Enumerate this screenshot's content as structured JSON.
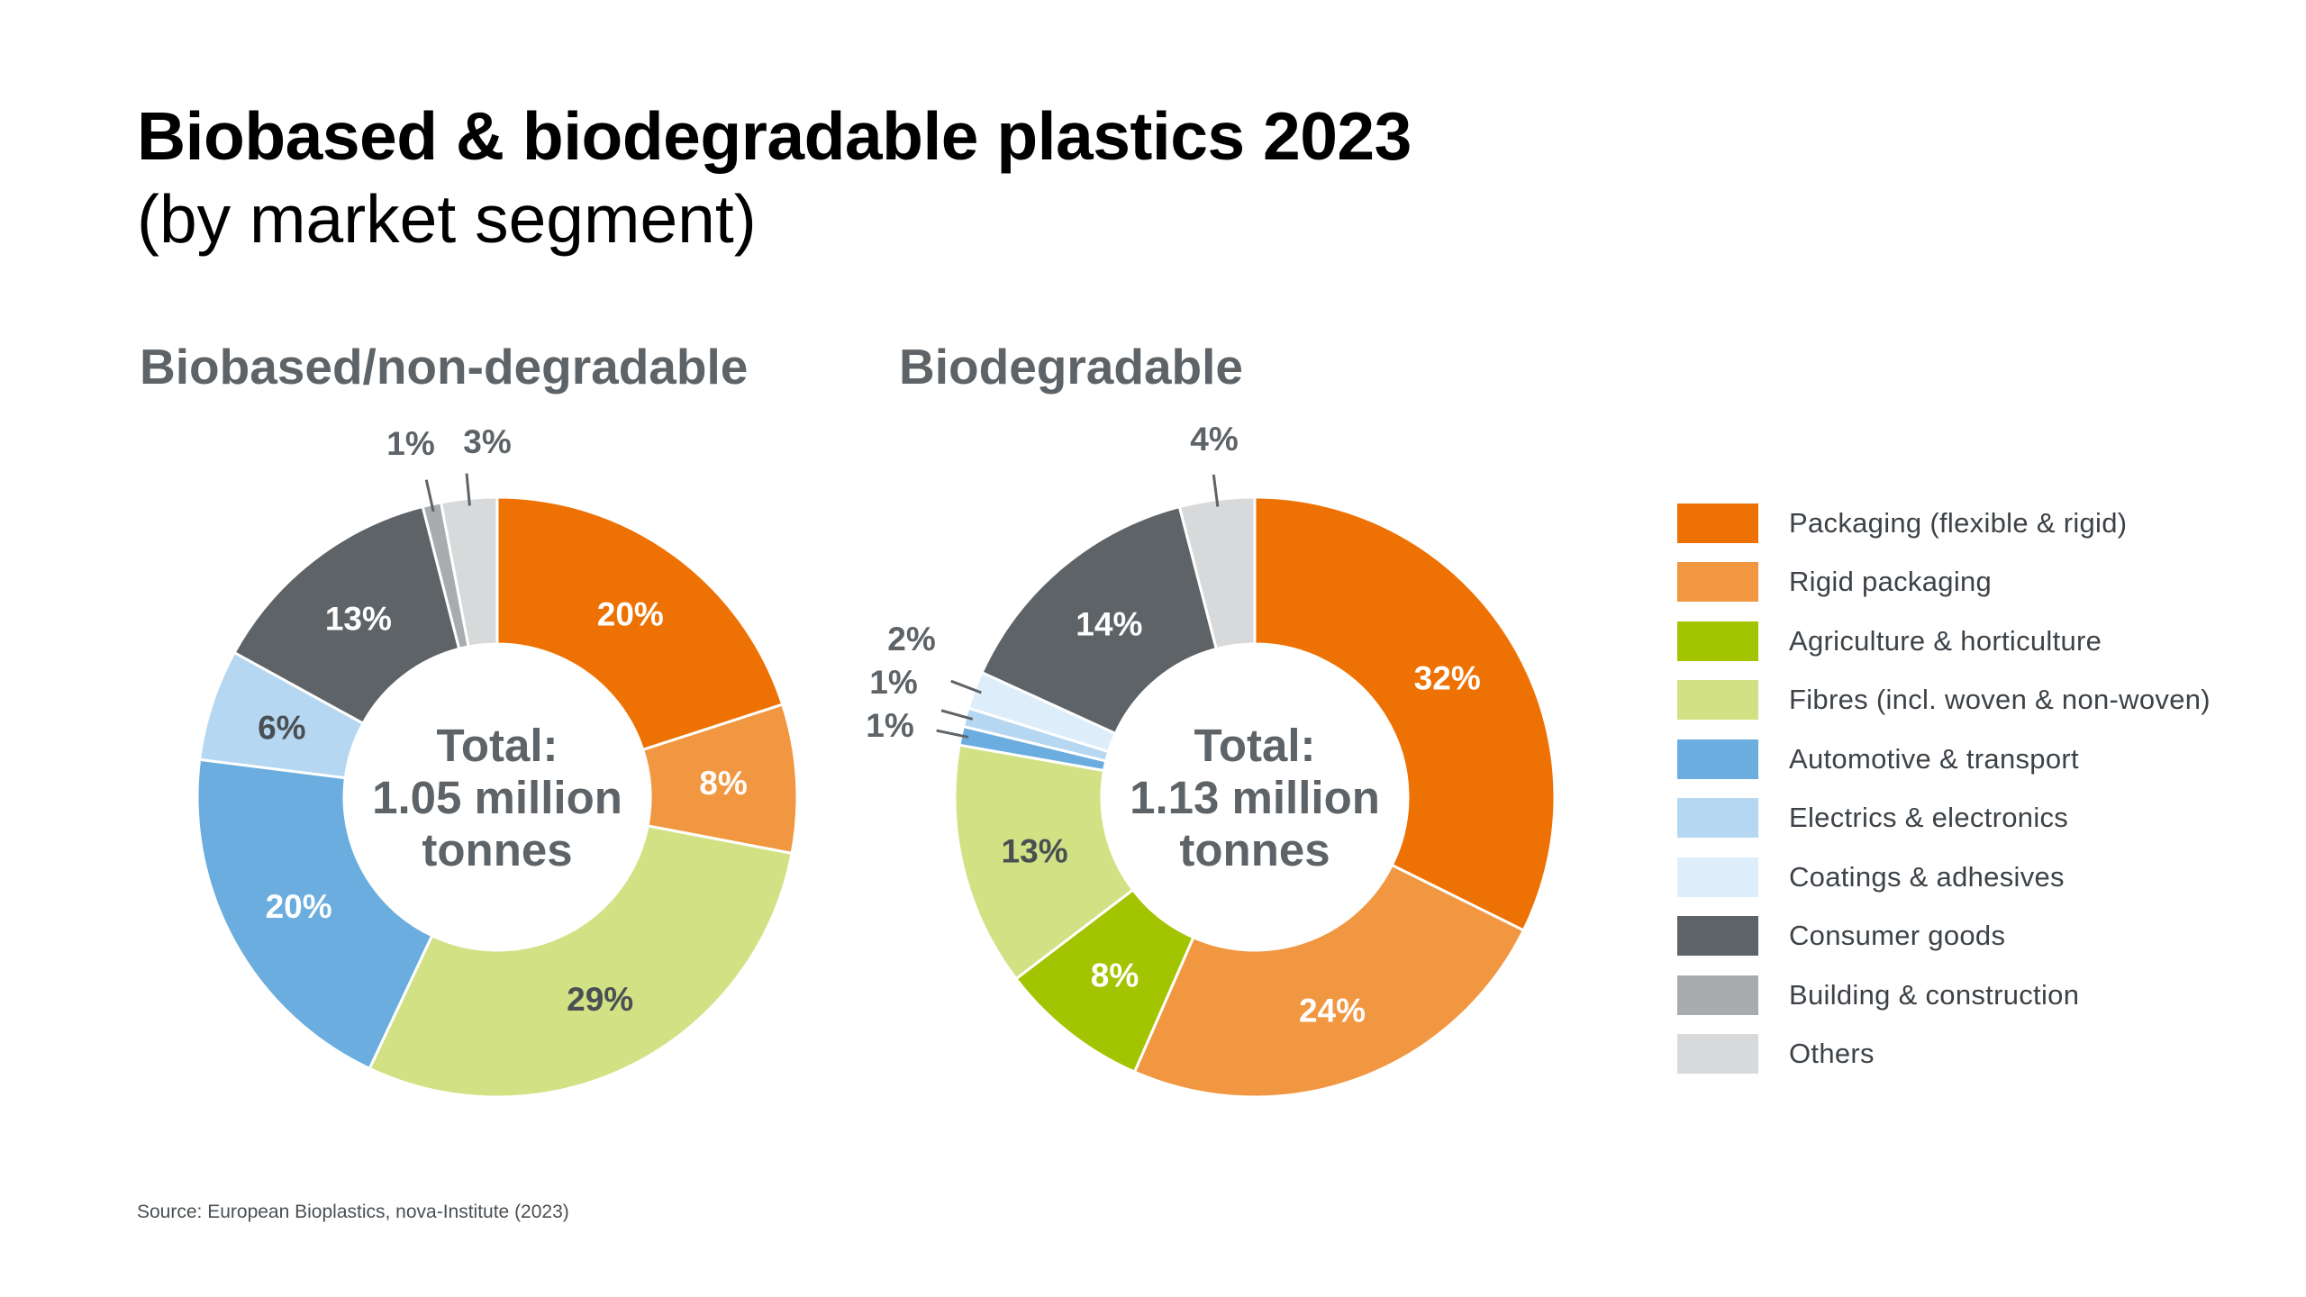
{
  "title": "Biobased & biodegradable plastics 2023",
  "subtitle": "(by market segment)",
  "source": "Source: European Bioplastics, nova-Institute (2023)",
  "legend": [
    {
      "label": "Packaging (flexible & rigid)",
      "color": "#ee7203"
    },
    {
      "label": "Rigid packaging",
      "color": "#f29741"
    },
    {
      "label": "Agriculture & horticulture",
      "color": "#a3c400"
    },
    {
      "label": "Fibres (incl. woven & non-woven)",
      "color": "#d3e185"
    },
    {
      "label": "Automotive & transport",
      "color": "#6aadde"
    },
    {
      "label": "Electrics & electronics",
      "color": "#b5d7f1"
    },
    {
      "label": "Coatings & adhesives",
      "color": "#ddeefa"
    },
    {
      "label": "Consumer goods",
      "color": "#5e6367"
    },
    {
      "label": "Building & construction",
      "color": "#a9acaf"
    },
    {
      "label": "Others",
      "color": "#d8d9da"
    }
  ],
  "chart_data": [
    {
      "type": "pie",
      "title": "Biobased/non-degradable",
      "center_label": [
        "Total:",
        "1.05 million",
        "tonnes"
      ],
      "slices": [
        {
          "category": "Packaging (flexible & rigid)",
          "label": "20%",
          "value": 20
        },
        {
          "category": "Rigid packaging",
          "label": "8%",
          "value": 8
        },
        {
          "category": "Fibres (incl. woven & non-woven)",
          "label": "29%",
          "value": 29
        },
        {
          "category": "Automotive & transport",
          "label": "20%",
          "value": 20
        },
        {
          "category": "Electrics & electronics",
          "label": "6%",
          "value": 6
        },
        {
          "category": "Consumer goods",
          "label": "13%",
          "value": 13
        },
        {
          "category": "Building & construction",
          "label": "1%",
          "value": 1
        },
        {
          "category": "Others",
          "label": "3%",
          "value": 3
        }
      ]
    },
    {
      "type": "pie",
      "title": "Biodegradable",
      "center_label": [
        "Total:",
        "1.13 million",
        "tonnes"
      ],
      "slices": [
        {
          "category": "Packaging (flexible & rigid)",
          "label": "32%",
          "value": 32
        },
        {
          "category": "Rigid packaging",
          "label": "24%",
          "value": 24
        },
        {
          "category": "Agriculture & horticulture",
          "label": "8%",
          "value": 8
        },
        {
          "category": "Fibres (incl. woven & non-woven)",
          "label": "13%",
          "value": 13
        },
        {
          "category": "Automotive & transport",
          "label": "1%",
          "value": 1
        },
        {
          "category": "Electrics & electronics",
          "label": "1%",
          "value": 1
        },
        {
          "category": "Coatings & adhesives",
          "label": "2%",
          "value": 2
        },
        {
          "category": "Consumer goods",
          "label": "14%",
          "value": 14
        },
        {
          "category": "Others",
          "label": "4%",
          "value": 4
        }
      ]
    }
  ]
}
